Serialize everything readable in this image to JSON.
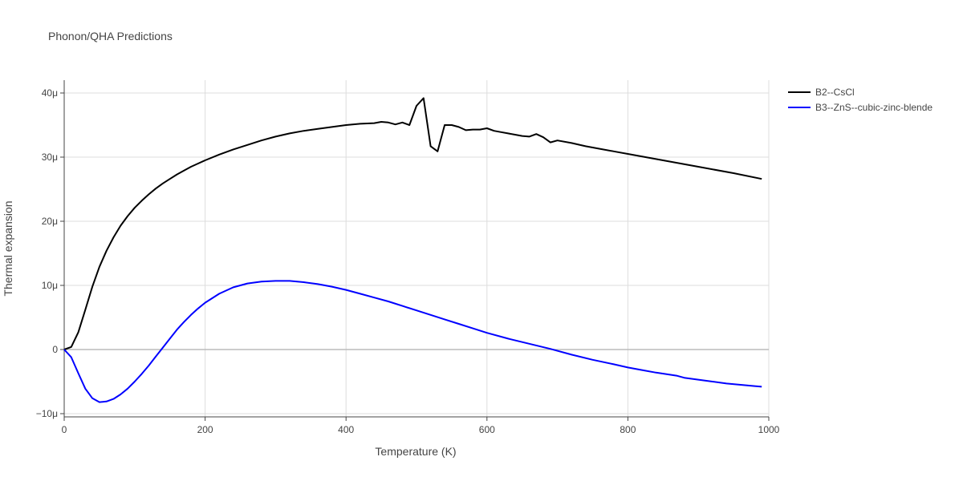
{
  "chart_data": {
    "type": "line",
    "title": "Phonon/QHA Predictions",
    "xlabel": "Temperature (K)",
    "ylabel": "Thermal expansion",
    "xlim": [
      0,
      1000
    ],
    "ylim": [
      -1.05e-05,
      4.2e-05
    ],
    "grid": true,
    "legend": "top-right",
    "x_ticks": [
      {
        "value": 0,
        "label": "0"
      },
      {
        "value": 200,
        "label": "200"
      },
      {
        "value": 400,
        "label": "400"
      },
      {
        "value": 600,
        "label": "600"
      },
      {
        "value": 800,
        "label": "800"
      },
      {
        "value": 1000,
        "label": "1000"
      }
    ],
    "y_ticks": [
      {
        "value": -1e-05,
        "label": "−10μ"
      },
      {
        "value": 0,
        "label": "0"
      },
      {
        "value": 1e-05,
        "label": "10μ"
      },
      {
        "value": 2e-05,
        "label": "20μ"
      },
      {
        "value": 3e-05,
        "label": "30μ"
      },
      {
        "value": 4e-05,
        "label": "40μ"
      }
    ],
    "series": [
      {
        "name": "B2--CsCl",
        "color": "#000000",
        "x": [
          0,
          10,
          20,
          30,
          40,
          50,
          60,
          70,
          80,
          90,
          100,
          110,
          120,
          130,
          140,
          150,
          160,
          170,
          180,
          190,
          200,
          220,
          240,
          260,
          280,
          300,
          320,
          340,
          360,
          380,
          400,
          420,
          440,
          450,
          460,
          470,
          480,
          490,
          500,
          510,
          520,
          530,
          540,
          550,
          560,
          570,
          580,
          590,
          600,
          610,
          620,
          630,
          640,
          650,
          660,
          670,
          680,
          690,
          700,
          720,
          740,
          760,
          780,
          800,
          850,
          900,
          950,
          990
        ],
        "values": [
          0,
          4e-07,
          2.7e-06,
          6.2e-06,
          9.8e-06,
          1.29e-05,
          1.54e-05,
          1.75e-05,
          1.93e-05,
          2.08e-05,
          2.21e-05,
          2.32e-05,
          2.42e-05,
          2.51e-05,
          2.59e-05,
          2.66e-05,
          2.73e-05,
          2.79e-05,
          2.85e-05,
          2.9e-05,
          2.95e-05,
          3.04e-05,
          3.12e-05,
          3.19e-05,
          3.26e-05,
          3.32e-05,
          3.37e-05,
          3.41e-05,
          3.44e-05,
          3.47e-05,
          3.5e-05,
          3.52e-05,
          3.53e-05,
          3.55e-05,
          3.54e-05,
          3.51e-05,
          3.54e-05,
          3.5e-05,
          3.8e-05,
          3.92e-05,
          3.17e-05,
          3.09e-05,
          3.5e-05,
          3.5e-05,
          3.47e-05,
          3.42e-05,
          3.43e-05,
          3.43e-05,
          3.45e-05,
          3.41e-05,
          3.39e-05,
          3.37e-05,
          3.35e-05,
          3.33e-05,
          3.32e-05,
          3.36e-05,
          3.31e-05,
          3.23e-05,
          3.26e-05,
          3.22e-05,
          3.17e-05,
          3.13e-05,
          3.09e-05,
          3.05e-05,
          2.95e-05,
          2.85e-05,
          2.75e-05,
          2.66e-05
        ]
      },
      {
        "name": "B3--ZnS--cubic-zinc-blende",
        "color": "#0000ff",
        "x": [
          0,
          10,
          20,
          30,
          40,
          50,
          60,
          70,
          80,
          90,
          100,
          110,
          120,
          130,
          140,
          150,
          160,
          170,
          180,
          190,
          200,
          220,
          240,
          260,
          280,
          300,
          320,
          340,
          360,
          380,
          400,
          420,
          440,
          460,
          480,
          500,
          520,
          540,
          560,
          580,
          600,
          630,
          660,
          690,
          720,
          750,
          780,
          800,
          820,
          840,
          870,
          880,
          900,
          920,
          940,
          960,
          980,
          990
        ],
        "values": [
          0,
          -1.2e-06,
          -3.7e-06,
          -6.1e-06,
          -7.6e-06,
          -8.2e-06,
          -8.1e-06,
          -7.7e-06,
          -7e-06,
          -6.1e-06,
          -5e-06,
          -3.8e-06,
          -2.5e-06,
          -1.1e-06,
          3e-07,
          1.7e-06,
          3.1e-06,
          4.3e-06,
          5.4e-06,
          6.4e-06,
          7.3e-06,
          8.7e-06,
          9.7e-06,
          1.03e-05,
          1.06e-05,
          1.07e-05,
          1.07e-05,
          1.05e-05,
          1.02e-05,
          9.8e-06,
          9.3e-06,
          8.7e-06,
          8.1e-06,
          7.5e-06,
          6.8e-06,
          6.1e-06,
          5.4e-06,
          4.7e-06,
          4e-06,
          3.3e-06,
          2.6e-06,
          1.7e-06,
          9e-07,
          1e-07,
          -8e-07,
          -1.6e-06,
          -2.3e-06,
          -2.8e-06,
          -3.2e-06,
          -3.6e-06,
          -4.1e-06,
          -4.4e-06,
          -4.7e-06,
          -5e-06,
          -5.3e-06,
          -5.5e-06,
          -5.7e-06,
          -5.8e-06
        ]
      }
    ]
  }
}
